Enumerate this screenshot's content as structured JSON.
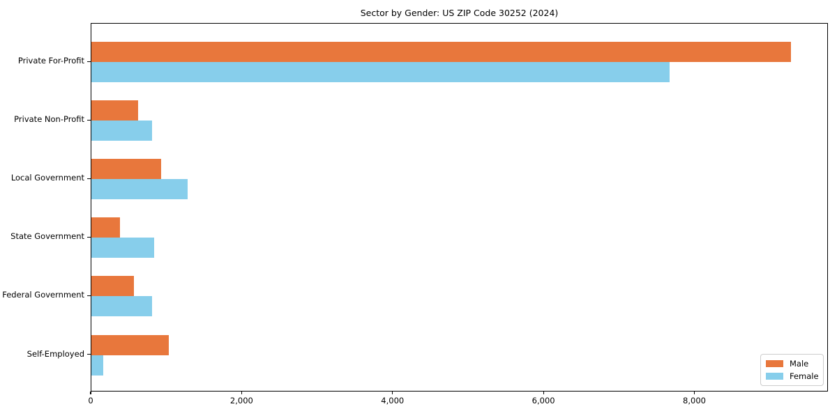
{
  "chart_data": {
    "type": "bar",
    "orientation": "horizontal",
    "title": "Sector by Gender: US ZIP Code 30252 (2024)",
    "categories": [
      "Private For-Profit",
      "Private Non-Profit",
      "Local Government",
      "State Government",
      "Federal Government",
      "Self-Employed"
    ],
    "series": [
      {
        "name": "Male",
        "color": "#e8773c",
        "values": [
          9270,
          620,
          920,
          380,
          560,
          1030
        ]
      },
      {
        "name": "Female",
        "color": "#87ceeb",
        "values": [
          7660,
          800,
          1280,
          830,
          800,
          160
        ]
      }
    ],
    "xlabel": "",
    "ylabel": "",
    "xlim": [
      0,
      9770
    ],
    "xticks": [
      0,
      2000,
      4000,
      6000,
      8000
    ],
    "xtick_labels": [
      "0",
      "2,000",
      "4,000",
      "6,000",
      "8,000"
    ],
    "grid": false,
    "legend": {
      "position": "lower-right",
      "entries": [
        "Male",
        "Female"
      ]
    }
  },
  "colors": {
    "male": "#e8773c",
    "female": "#87ceeb",
    "axis": "#000000",
    "legend_border": "#cccccc",
    "background": "#ffffff"
  }
}
